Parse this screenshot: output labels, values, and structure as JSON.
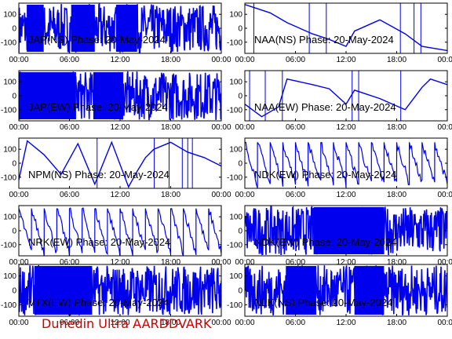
{
  "footer": "Dunedin Ultra AARDDVARK",
  "colors": {
    "trace": "#0000ee",
    "axes": "#000000",
    "background": "#ffffff",
    "footer": "#cc0000"
  },
  "chart_data": [
    {
      "type": "line",
      "title": "JAP(NS) Phase: 20-May-2024",
      "xlabel": "",
      "ylabel": "",
      "x_ticks": [
        "00:00",
        "06:00",
        "12:00",
        "18:00",
        "00:00"
      ],
      "y_ticks": [
        100,
        0,
        -100
      ],
      "ylim": [
        -180,
        180
      ],
      "series": [
        {
          "pattern": "dense",
          "x_hours": [
            0,
            24
          ],
          "y": [
            0,
            0
          ]
        }
      ]
    },
    {
      "type": "line",
      "title": "NAA(NS) Phase: 20-May-2024",
      "xlabel": "",
      "ylabel": "",
      "x_ticks": [
        "00:00",
        "06:00",
        "12:00",
        "18:00",
        "00:00"
      ],
      "y_ticks": [
        100,
        0,
        -100
      ],
      "ylim": [
        -180,
        180
      ],
      "series": [
        {
          "pattern": "line",
          "x_hours": [
            0,
            1.5,
            3,
            5,
            8,
            10,
            12,
            13,
            16,
            19,
            21,
            24
          ],
          "y": [
            170,
            140,
            110,
            40,
            -40,
            -80,
            -130,
            -20,
            60,
            -40,
            -130,
            -160
          ]
        }
      ]
    },
    {
      "type": "line",
      "title": "JAP(EW) Phase: 20-May-2024",
      "xlabel": "",
      "ylabel": "",
      "x_ticks": [
        "00:00",
        "06:00",
        "12:00",
        "18:00",
        "00:00"
      ],
      "y_ticks": [
        100,
        0,
        -100
      ],
      "ylim": [
        -180,
        180
      ],
      "series": [
        {
          "pattern": "dense",
          "x_hours": [
            0,
            24
          ],
          "y": [
            0,
            0
          ]
        }
      ]
    },
    {
      "type": "line",
      "title": "NAA(EW) Phase: 20-May-2024",
      "xlabel": "",
      "ylabel": "",
      "x_ticks": [
        "00:00",
        "06:00",
        "12:00",
        "18:00",
        "00:00"
      ],
      "y_ticks": [
        100,
        0,
        -100
      ],
      "ylim": [
        -180,
        180
      ],
      "series": [
        {
          "pattern": "line",
          "x_hours": [
            0,
            2,
            4,
            5,
            8,
            10,
            12,
            13,
            16,
            19,
            21,
            22,
            24
          ],
          "y": [
            -60,
            -150,
            -80,
            120,
            80,
            50,
            -60,
            40,
            -20,
            -100,
            60,
            120,
            80
          ]
        }
      ]
    },
    {
      "type": "line",
      "title": "NPM(NS) Phase: 20-May-2024",
      "xlabel": "",
      "ylabel": "",
      "x_ticks": [
        "00:00",
        "06:00",
        "12:00",
        "18:00",
        "00:00"
      ],
      "y_ticks": [
        100,
        0,
        -100
      ],
      "ylim": [
        -180,
        180
      ],
      "series": [
        {
          "pattern": "line",
          "x_hours": [
            0,
            1,
            3,
            5,
            7,
            9,
            11,
            13,
            14,
            15,
            16,
            18,
            20,
            22,
            24
          ],
          "y": [
            -120,
            160,
            60,
            -80,
            140,
            -150,
            150,
            -170,
            -60,
            40,
            100,
            150,
            80,
            40,
            -20
          ]
        }
      ]
    },
    {
      "type": "line",
      "title": "NDK(EW) Phase: 20-May-2024",
      "xlabel": "",
      "ylabel": "",
      "x_ticks": [
        "00:00",
        "06:00",
        "12:00",
        "18:00",
        "00:00"
      ],
      "y_ticks": [
        100,
        0,
        -100
      ],
      "ylim": [
        -180,
        180
      ],
      "series": [
        {
          "pattern": "sawtooth",
          "x_hours": [
            0,
            24
          ],
          "y": [
            150,
            -150
          ]
        }
      ]
    },
    {
      "type": "line",
      "title": "NRK(EW) Phase: 20-May-2024",
      "xlabel": "",
      "ylabel": "",
      "x_ticks": [
        "00:00",
        "06:00",
        "12:00",
        "18:00",
        "00:00"
      ],
      "y_ticks": [
        100,
        0,
        -100
      ],
      "ylim": [
        -180,
        180
      ],
      "series": [
        {
          "pattern": "sawtooth",
          "x_hours": [
            0,
            24
          ],
          "y": [
            160,
            -160
          ]
        }
      ]
    },
    {
      "type": "line",
      "title": "NDK(EW) Phase: 20-May-2024",
      "xlabel": "",
      "ylabel": "",
      "x_ticks": [
        "00:00",
        "06:00",
        "12:00",
        "18:00",
        "00:00"
      ],
      "y_ticks": [
        100,
        0,
        -100
      ],
      "ylim": [
        -180,
        180
      ],
      "series": [
        {
          "pattern": "dense",
          "x_hours": [
            0,
            24
          ],
          "y": [
            0,
            0
          ]
        }
      ]
    },
    {
      "type": "line",
      "title": "VTX(EW) Phase: 20-May-2024",
      "xlabel": "",
      "ylabel": "",
      "x_ticks": [
        "00:00",
        "06:00",
        "12:00",
        "18:00",
        "00:00"
      ],
      "y_ticks": [
        100,
        0,
        -100
      ],
      "ylim": [
        -180,
        180
      ],
      "series": [
        {
          "pattern": "dense",
          "x_hours": [
            0,
            24
          ],
          "y": [
            0,
            0
          ]
        }
      ]
    },
    {
      "type": "line",
      "title": "NLK(NS) Phase: 20-May-2024",
      "xlabel": "",
      "ylabel": "",
      "x_ticks": [
        "00:00",
        "06:00",
        "12:00",
        "18:00",
        "00:00"
      ],
      "y_ticks": [
        100,
        0,
        -100
      ],
      "ylim": [
        -180,
        180
      ],
      "series": [
        {
          "pattern": "dense",
          "x_hours": [
            0,
            24
          ],
          "y": [
            0,
            0
          ]
        }
      ]
    }
  ]
}
